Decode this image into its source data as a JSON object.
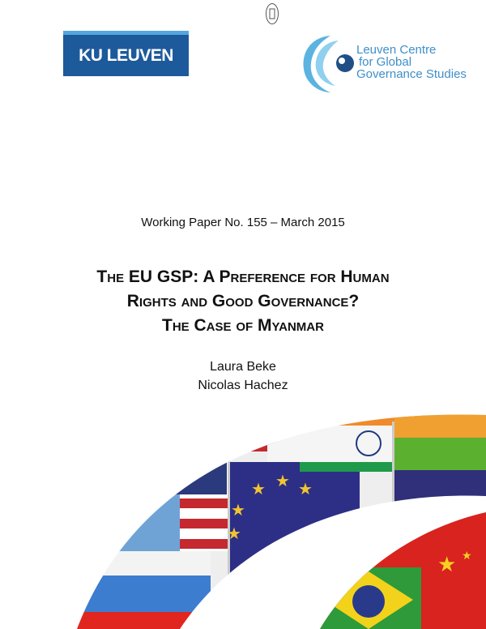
{
  "logos": {
    "ku_leuven": "KU LEUVEN",
    "centre_lines": [
      "Leuven Centre",
      "for Global",
      "Governance Studies"
    ]
  },
  "working_paper": "Working Paper No. 155 – March 2015",
  "title_lines": [
    "The EU GSP: A Preference for Human",
    "Rights and Good Governance?",
    "The Case of Myanmar"
  ],
  "authors": [
    "Laura Beke",
    "Nicolas Hachez"
  ],
  "cover_image": {
    "flags": [
      "United Nations",
      "United States",
      "European Union",
      "India",
      "Russia",
      "Brazil",
      "China"
    ]
  },
  "colors": {
    "ku_blue": "#1d5a9b",
    "ku_light": "#53a7dc",
    "centre_blue": "#3f8fc9"
  }
}
